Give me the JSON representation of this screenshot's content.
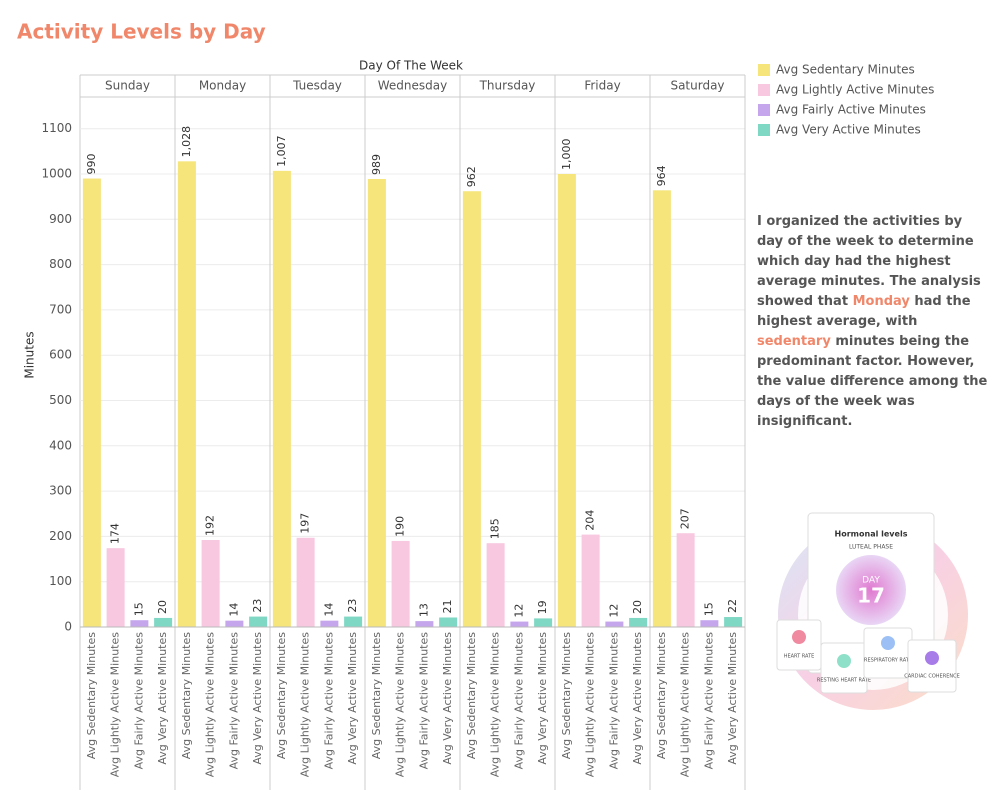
{
  "chart_data": {
    "type": "bar",
    "title": "Activity Levels by Day",
    "facet_label": "Day Of The Week",
    "y_label": "Minutes",
    "categories": [
      "Sunday",
      "Monday",
      "Tuesday",
      "Wednesday",
      "Thursday",
      "Friday",
      "Saturday"
    ],
    "series": [
      {
        "name": "Avg Sedentary Minutes",
        "color": "#f5e57a",
        "values": [
          990,
          1028,
          1007,
          989,
          962,
          1000,
          964
        ],
        "value_labels": [
          "990",
          "1,028",
          "1,007",
          "989",
          "962",
          "1,000",
          "964"
        ]
      },
      {
        "name": "Avg Lightly Active Minutes",
        "color": "#f7c8df",
        "values": [
          174,
          192,
          197,
          190,
          185,
          204,
          207
        ]
      },
      {
        "name": "Avg Fairly Active Minutes",
        "color": "#c5a6ec",
        "values": [
          15,
          14,
          14,
          13,
          12,
          12,
          15
        ]
      },
      {
        "name": "Avg Very Active Minutes",
        "color": "#7fd8c4",
        "values": [
          20,
          23,
          23,
          21,
          19,
          20,
          22
        ]
      }
    ],
    "ylim": [
      0,
      1170
    ],
    "yticks": [
      0,
      100,
      200,
      300,
      400,
      500,
      600,
      700,
      800,
      900,
      1000,
      1100
    ],
    "grid": true,
    "legend": "top-right"
  },
  "description": [
    "I organized the activities by day of the week to determine which day had the highest average minutes. The analysis showed that ",
    "Monday",
    " had the highest average, with ",
    "sedentary",
    " minutes being the predominant factor. However, the value difference among the days of the week was insignificant."
  ],
  "illustration": {
    "card_title": "Hormonal levels",
    "phase": "LUTEAL PHASE",
    "day_word": "DAY",
    "day_number": "17",
    "metrics": [
      "HEART RATE",
      "RESTING HEART RATE",
      "RESPIRATORY RATE",
      "CARDIAC COHERENCE"
    ]
  }
}
